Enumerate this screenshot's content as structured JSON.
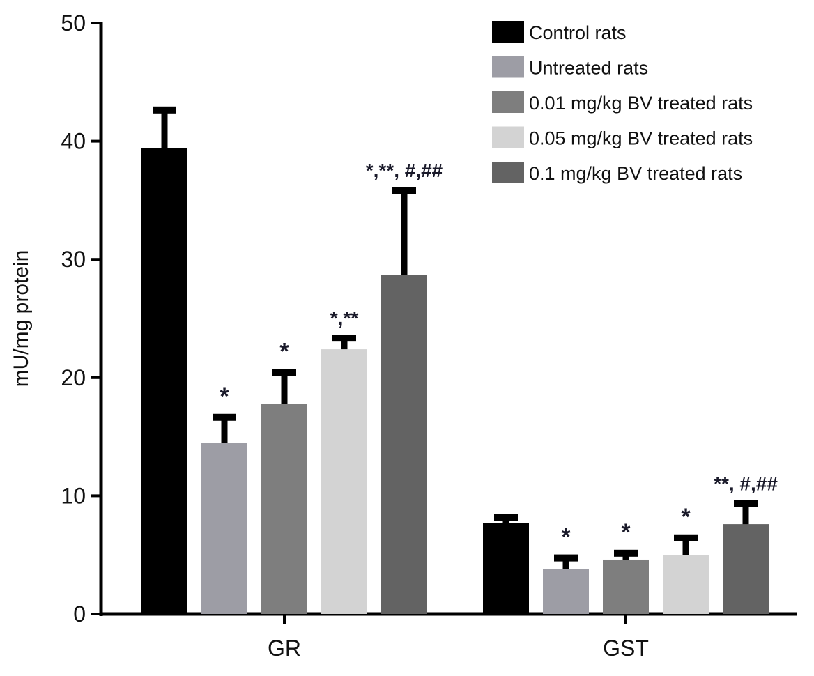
{
  "chart_data": {
    "type": "bar",
    "title": "",
    "xlabel": "",
    "ylabel": "mU/mg protein",
    "ylim": [
      0,
      50
    ],
    "yticks": [
      "0",
      "10",
      "20",
      "30",
      "40",
      "50"
    ],
    "grid": false,
    "legend_position": "top-right",
    "categories": [
      "GR",
      "GST"
    ],
    "series": [
      {
        "name": "Control rats",
        "color": "#000000",
        "values": [
          39.4,
          7.7
        ],
        "errors": [
          3.3,
          0.5
        ],
        "annotations": [
          "",
          ""
        ]
      },
      {
        "name": "Untreated rats",
        "color": "#9d9da5",
        "values": [
          14.5,
          3.8
        ],
        "errors": [
          2.2,
          1.0
        ],
        "annotations": [
          "*",
          "*"
        ]
      },
      {
        "name": "0.01 mg/kg BV treated rats",
        "color": "#7e7e7e",
        "values": [
          17.8,
          4.6
        ],
        "errors": [
          2.7,
          0.6
        ],
        "annotations": [
          "*",
          "*"
        ]
      },
      {
        "name": "0.05 mg/kg BV treated rats",
        "color": "#d3d3d3",
        "values": [
          22.4,
          5.0
        ],
        "errors": [
          1.0,
          1.5
        ],
        "annotations": [
          "*,**",
          "*"
        ]
      },
      {
        "name": "0.1 mg/kg BV treated rats",
        "color": "#636363",
        "values": [
          28.7,
          7.6
        ],
        "errors": [
          7.2,
          1.8
        ],
        "annotations": [
          "*,**, #,##",
          "**, #,##"
        ]
      }
    ]
  }
}
